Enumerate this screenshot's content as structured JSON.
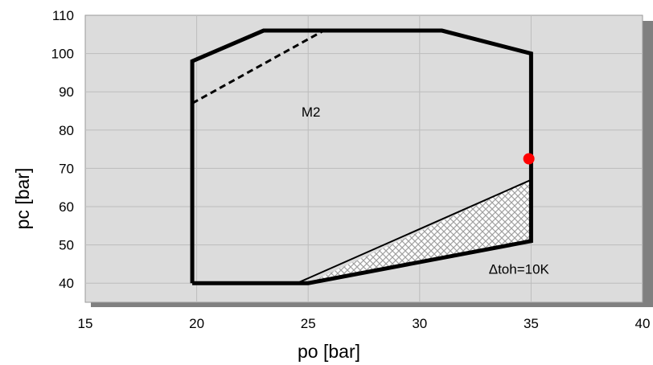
{
  "chart_data": {
    "type": "line",
    "xlabel": "po [bar]",
    "ylabel": "pc [bar]",
    "xlim": [
      15,
      40
    ],
    "ylim": [
      35,
      110
    ],
    "xticks": [
      15,
      20,
      25,
      30,
      35,
      40
    ],
    "yticks": [
      40,
      50,
      60,
      70,
      80,
      90,
      100,
      110
    ],
    "grid": true,
    "series": [
      {
        "style": "solid-thick",
        "points": [
          [
            19.8,
            40
          ],
          [
            19.8,
            98
          ],
          [
            23,
            106
          ],
          [
            31,
            106
          ],
          [
            35,
            100
          ],
          [
            35,
            51
          ],
          [
            25,
            40
          ],
          [
            19.8,
            40
          ]
        ]
      },
      {
        "style": "dashed",
        "points": [
          [
            19.8,
            87
          ],
          [
            25.7,
            106
          ]
        ]
      },
      {
        "style": "solid-thin",
        "points": [
          [
            24.5,
            40
          ],
          [
            35,
            67
          ]
        ]
      }
    ],
    "hatched_region": [
      [
        25,
        40
      ],
      [
        35,
        67
      ],
      [
        35,
        51
      ]
    ],
    "marker": {
      "x": 34.9,
      "y": 72.5,
      "color": "#ff0000"
    },
    "annotations": [
      {
        "text": "M2",
        "x": 24.7,
        "y": 83.5
      },
      {
        "text": "Δtoh=10K",
        "x": 33.1,
        "y": 42.5
      }
    ],
    "colors": {
      "plot_bg": "#dcdcdc",
      "shadow": "#808080",
      "line": "#000000",
      "hatch": "#a0a0a0",
      "marker": "#ff0000"
    }
  }
}
